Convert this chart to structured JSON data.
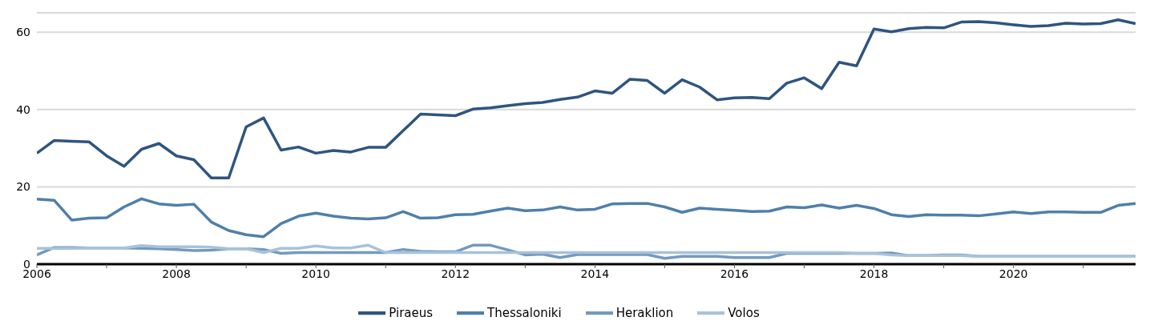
{
  "chart_data": {
    "type": "line",
    "x": [
      2006,
      2006.25,
      2006.5,
      2006.75,
      2007,
      2007.25,
      2007.5,
      2007.75,
      2008,
      2008.25,
      2008.5,
      2008.75,
      2009,
      2009.25,
      2009.5,
      2009.75,
      2010,
      2010.25,
      2010.5,
      2010.75,
      2011,
      2011.25,
      2011.5,
      2011.75,
      2012,
      2012.25,
      2012.5,
      2012.75,
      2013,
      2013.25,
      2013.5,
      2013.75,
      2014,
      2014.25,
      2014.5,
      2014.75,
      2015,
      2015.25,
      2015.5,
      2015.75,
      2016,
      2016.25,
      2016.5,
      2016.75,
      2017,
      2017.25,
      2017.5,
      2017.75,
      2018,
      2018.25,
      2018.5,
      2018.75,
      2019,
      2019.25,
      2019.5,
      2019.75,
      2020,
      2020.25,
      2020.5,
      2020.75,
      2021,
      2021.25,
      2021.5,
      2021.75
    ],
    "series": [
      {
        "name": "Piraeus",
        "color": "#2f5480",
        "values": [
          28.7,
          32,
          31.8,
          31.6,
          28,
          25.3,
          29.7,
          31.2,
          28,
          27,
          22.3,
          22.3,
          35.5,
          37.8,
          29.5,
          30.3,
          28.7,
          29.4,
          29,
          30.2,
          30.2,
          34.5,
          38.8,
          38.6,
          38.4,
          40.1,
          40.4,
          41,
          41.5,
          41.8,
          42.6,
          43.2,
          44.8,
          44.2,
          47.8,
          47.5,
          44.2,
          47.7,
          45.8,
          42.5,
          43,
          43.1,
          42.8,
          46.8,
          48.2,
          45.4,
          52.2,
          51.3,
          60.8,
          60.1,
          60.9,
          61.2,
          61.1,
          62.6,
          62.7,
          62.4,
          61.9,
          61.5,
          61.7,
          62.3,
          62.1,
          62.2,
          63.2,
          62.2
        ]
      },
      {
        "name": "Thessaloniki",
        "color": "#4f7fab",
        "values": [
          16.8,
          16.5,
          11.4,
          11.9,
          12,
          14.8,
          16.9,
          15.6,
          15.2,
          15.5,
          10.9,
          8.7,
          7.6,
          7.1,
          10.5,
          12.4,
          13.2,
          12.4,
          11.9,
          11.7,
          12,
          13.6,
          11.9,
          12,
          12.8,
          12.9,
          13.7,
          14.5,
          13.8,
          14,
          14.8,
          14,
          14.2,
          15.6,
          15.7,
          15.7,
          14.8,
          13.4,
          14.5,
          14.2,
          13.9,
          13.6,
          13.7,
          14.8,
          14.6,
          15.3,
          14.5,
          15.2,
          14.4,
          12.8,
          12.3,
          12.8,
          12.7,
          12.7,
          12.5,
          13,
          13.5,
          13.1,
          13.5,
          13.5,
          13.4,
          13.4,
          15.2,
          15.7
        ]
      },
      {
        "name": "Heraklion",
        "color": "#7399bf",
        "values": [
          2.4,
          4.3,
          4.3,
          4.2,
          4.2,
          4.2,
          4.1,
          4,
          3.8,
          3.5,
          3.6,
          4,
          4,
          3.8,
          2.8,
          3,
          3,
          3,
          3,
          3,
          3,
          3.8,
          3.3,
          3.2,
          3.2,
          4.9,
          4.9,
          3.7,
          2.4,
          2.6,
          1.7,
          2.5,
          2.5,
          2.5,
          2.5,
          2.5,
          1.5,
          2,
          2,
          2,
          1.7,
          1.7,
          1.7,
          2.8,
          2.8,
          2.8,
          2.8,
          2.8,
          2.8,
          2.9,
          2.2,
          2.2,
          2.4,
          2.4,
          2,
          2,
          2,
          2,
          2,
          2,
          2,
          2,
          2,
          2
        ]
      },
      {
        "name": "Volos",
        "color": "#a8c2db",
        "values": [
          4.1,
          4.1,
          4.1,
          4.2,
          4.2,
          4.2,
          4.8,
          4.5,
          4.5,
          4.5,
          4.4,
          4,
          4,
          3,
          4.1,
          4.1,
          4.7,
          4.2,
          4.2,
          4.9,
          3,
          3,
          3,
          3,
          3,
          3,
          3,
          3,
          3,
          3,
          3,
          3,
          3,
          3,
          3,
          3,
          3,
          3,
          3,
          3,
          3,
          3,
          3,
          3,
          3,
          3,
          3,
          2.8,
          2.8,
          2.4,
          2.2,
          2.2,
          2.2,
          2.2,
          2,
          2,
          2,
          2,
          2,
          2,
          2,
          2,
          2,
          2
        ]
      }
    ],
    "xlim": [
      2006,
      2021.75
    ],
    "xticks": [
      2006,
      {
        "value": 2007,
        "label": null
      },
      2008,
      {
        "value": 2009,
        "label": null
      },
      2010,
      {
        "value": 2011,
        "label": null
      },
      2012,
      {
        "value": 2013,
        "label": null
      },
      2014,
      {
        "value": 2015,
        "label": null
      },
      2016,
      {
        "value": 2017,
        "label": null
      },
      2018,
      {
        "value": 2019,
        "label": null
      },
      2020,
      {
        "value": 2021,
        "label": null
      }
    ],
    "ylim": [
      0,
      65
    ],
    "yticks": [
      0,
      20,
      40,
      60
    ],
    "grid": "y",
    "legend": "bottom",
    "marker": "none",
    "line_style": "solid"
  }
}
